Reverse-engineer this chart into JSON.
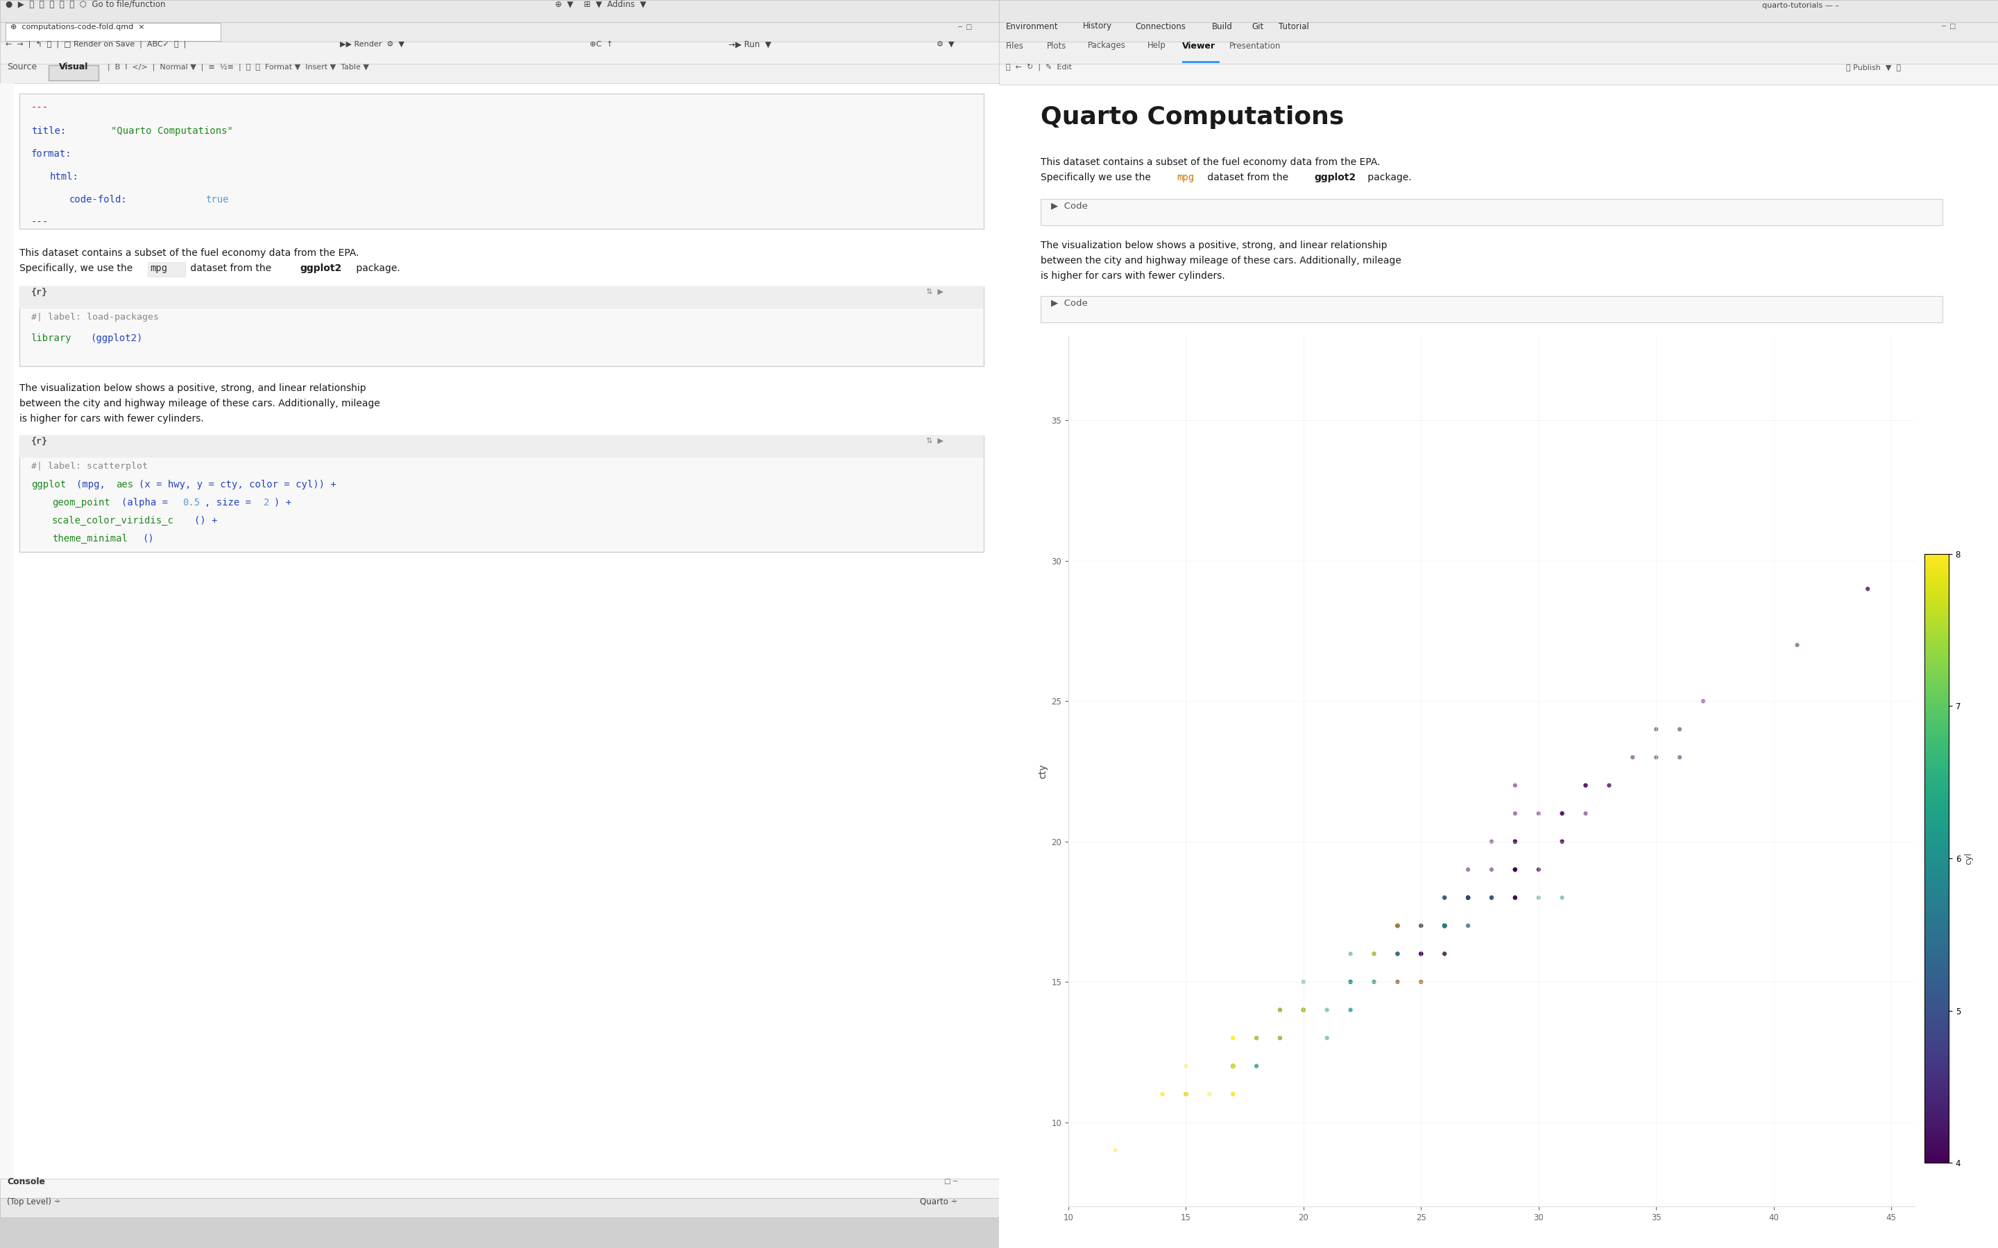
{
  "yaml_dashes_color": "#cc0066",
  "yaml_key_color": "#2244bb",
  "yaml_string_color": "#228822",
  "yaml_value_color": "#5599dd",
  "code_fn_color": "#228822",
  "code_text_color": "#2244bb",
  "code_comment_color": "#888888",
  "code_num_color": "#5599dd",
  "prose_color": "#1a1a1a",
  "mpg_color_right": "#cc7700",
  "toolbar_bg": "#e8e8e8",
  "tab_bar_bg": "#ebebeb",
  "active_tab_bg": "#ffffff",
  "editor_bg": "#ffffff",
  "code_block_bg": "#f8f8f8",
  "code_block_border": "#d0d0d0",
  "code_header_bg": "#eeeeee",
  "inline_code_bg": "#eeeeee",
  "panel_bg": "#f5f5f5",
  "right_panel_bg": "#ffffff",
  "status_bar_bg": "#e8e8e8",
  "console_bar_bg": "#f5f5f5",
  "hwy_data": [
    29,
    29,
    31,
    30,
    26,
    26,
    27,
    26,
    25,
    28,
    27,
    25,
    25,
    25,
    25,
    24,
    25,
    23,
    20,
    15,
    20,
    17,
    17,
    26,
    23,
    26,
    25,
    24,
    19,
    14,
    15,
    17,
    27,
    30,
    26,
    29,
    26,
    24,
    24,
    22,
    22,
    24,
    24,
    17,
    22,
    21,
    23,
    23,
    19,
    18,
    17,
    17,
    20,
    19,
    20,
    17,
    15,
    17,
    26,
    25,
    26,
    24,
    21,
    22,
    23,
    22,
    20,
    33,
    32,
    32,
    29,
    32,
    34,
    36,
    36,
    29,
    26,
    27,
    30,
    31,
    26,
    26,
    28,
    26,
    29,
    28,
    27,
    24,
    24,
    24,
    22,
    19,
    20,
    17,
    12,
    19,
    18,
    14,
    15,
    18,
    18,
    15,
    17,
    16,
    18,
    17,
    19,
    19,
    17,
    29,
    27,
    31,
    32,
    27,
    26,
    26,
    25,
    25,
    17,
    17,
    20,
    18,
    26,
    26,
    27,
    28,
    25,
    25,
    24,
    27,
    25,
    26,
    23,
    26,
    26,
    26,
    26,
    25,
    27,
    25,
    27,
    20,
    20,
    19,
    17,
    20,
    17,
    29,
    27,
    31,
    31,
    26,
    26,
    28,
    27,
    29,
    31,
    31,
    26,
    26,
    27,
    30,
    33,
    35,
    37,
    35,
    15,
    18,
    20,
    20,
    22,
    17,
    19,
    18,
    20,
    29,
    26,
    29,
    29,
    24,
    44,
    29,
    26,
    29,
    29,
    29,
    23,
    24,
    44,
    41,
    29,
    26,
    28,
    29,
    29,
    29,
    28,
    29,
    26,
    26,
    26
  ],
  "cty_data": [
    18,
    21,
    20,
    21,
    16,
    18,
    18,
    18,
    16,
    20,
    19,
    15,
    17,
    17,
    15,
    15,
    17,
    16,
    14,
    11,
    14,
    13,
    13,
    16,
    15,
    17,
    15,
    15,
    13,
    11,
    12,
    11,
    17,
    19,
    17,
    19,
    17,
    16,
    16,
    15,
    15,
    17,
    17,
    11,
    15,
    14,
    16,
    16,
    14,
    13,
    12,
    12,
    14,
    14,
    14,
    12,
    11,
    12,
    16,
    15,
    16,
    15,
    13,
    14,
    15,
    14,
    14,
    22,
    22,
    22,
    22,
    22,
    23,
    24,
    23,
    18,
    17,
    18,
    18,
    18,
    17,
    17,
    18,
    17,
    19,
    19,
    18,
    17,
    17,
    17,
    15,
    14,
    15,
    12,
    9,
    13,
    13,
    11,
    11,
    12,
    12,
    11,
    12,
    11,
    13,
    12,
    13,
    13,
    12,
    19,
    18,
    20,
    21,
    18,
    17,
    17,
    17,
    17,
    11,
    11,
    14,
    13,
    17,
    17,
    18,
    18,
    16,
    16,
    16,
    18,
    17,
    18,
    15,
    17,
    17,
    17,
    17,
    16,
    18,
    16,
    18,
    14,
    14,
    13,
    12,
    14,
    12,
    19,
    18,
    20,
    21,
    18,
    17,
    18,
    17,
    19,
    21,
    21,
    17,
    17,
    18,
    19,
    22,
    23,
    25,
    24,
    11,
    13,
    14,
    14,
    16,
    13,
    14,
    13,
    14,
    19,
    17,
    20,
    19,
    16,
    29,
    18,
    17,
    18,
    18,
    18,
    16,
    17,
    29,
    27,
    20,
    17,
    18,
    20,
    20,
    20,
    18,
    19,
    17,
    17,
    17
  ],
  "cyl_data": [
    4,
    4,
    4,
    4,
    6,
    6,
    6,
    4,
    4,
    4,
    4,
    8,
    8,
    8,
    8,
    8,
    8,
    8,
    8,
    8,
    8,
    8,
    8,
    8,
    8,
    8,
    8,
    8,
    8,
    8,
    8,
    8,
    4,
    4,
    4,
    4,
    6,
    6,
    6,
    6,
    6,
    6,
    6,
    8,
    6,
    6,
    6,
    6,
    8,
    8,
    8,
    8,
    4,
    4,
    4,
    4,
    4,
    4,
    4,
    4,
    4,
    4,
    6,
    6,
    6,
    6,
    6,
    4,
    4,
    4,
    4,
    4,
    4,
    4,
    4,
    6,
    6,
    6,
    6,
    6,
    4,
    4,
    4,
    4,
    4,
    4,
    4,
    4,
    4,
    4,
    6,
    6,
    6,
    6,
    8,
    6,
    6,
    8,
    8,
    6,
    6,
    8,
    6,
    8,
    6,
    6,
    6,
    6,
    8,
    4,
    4,
    4,
    4,
    6,
    6,
    6,
    6,
    6,
    8,
    8,
    8,
    8,
    4,
    4,
    4,
    4,
    4,
    4,
    4,
    4,
    4,
    4,
    6,
    4,
    4,
    4,
    4,
    4,
    4,
    4,
    4,
    8,
    8,
    8,
    8,
    8,
    8,
    4,
    4,
    4,
    4,
    6,
    6,
    6,
    6,
    4,
    4,
    4,
    6,
    6,
    6,
    4,
    4,
    4,
    4,
    4,
    8,
    6,
    6,
    6,
    6,
    8,
    8,
    8,
    8,
    4,
    4,
    4,
    4,
    6,
    4,
    4,
    4,
    4,
    4,
    4,
    8,
    8,
    4,
    4,
    6,
    4,
    4,
    4,
    4,
    4,
    6,
    4,
    6,
    6,
    6
  ]
}
